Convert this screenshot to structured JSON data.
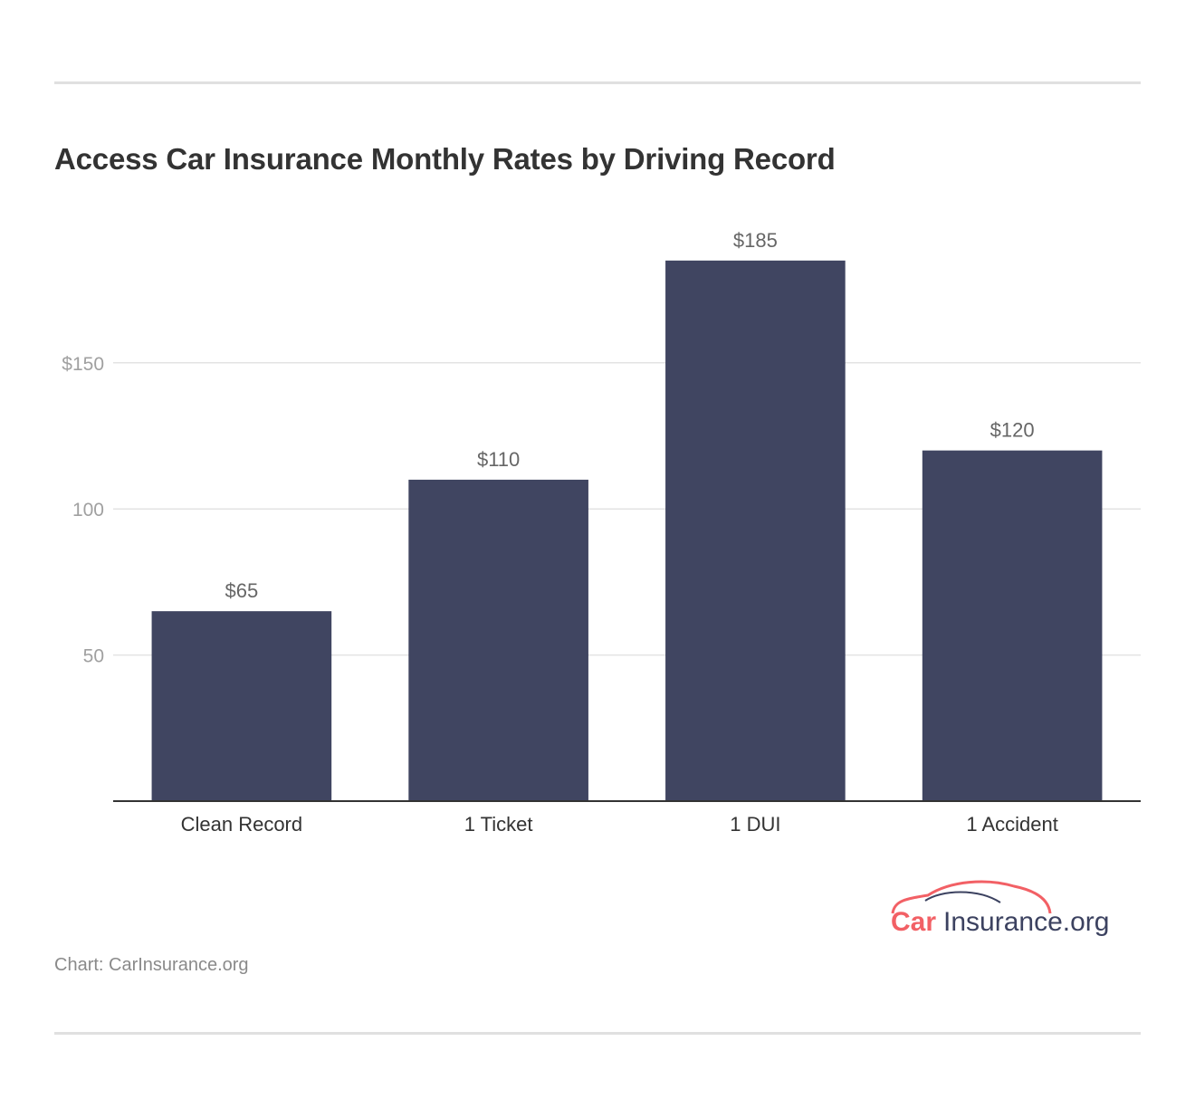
{
  "chart_data": {
    "type": "bar",
    "title": "Access Car Insurance Monthly Rates by Driving Record",
    "categories": [
      "Clean Record",
      "1 Ticket",
      "1 DUI",
      "1 Accident"
    ],
    "values": [
      65,
      110,
      185,
      120
    ],
    "data_labels": [
      "$65",
      "$110",
      "$185",
      "$120"
    ],
    "yticks": [
      50,
      100,
      150
    ],
    "ytick_labels": [
      "50",
      "100",
      "$150"
    ],
    "ylim": [
      0,
      200
    ],
    "xlabel": "",
    "ylabel": "",
    "grid": true,
    "colors": {
      "bar": "#404561",
      "grid": "#e3e3e3",
      "axis": "#333333"
    }
  },
  "source": "Chart: CarInsurance.org",
  "logo": {
    "text_car": "Car",
    "text_rest": "Insurance.org",
    "colors": {
      "accent": "#f26065",
      "dark": "#3c4260"
    }
  }
}
